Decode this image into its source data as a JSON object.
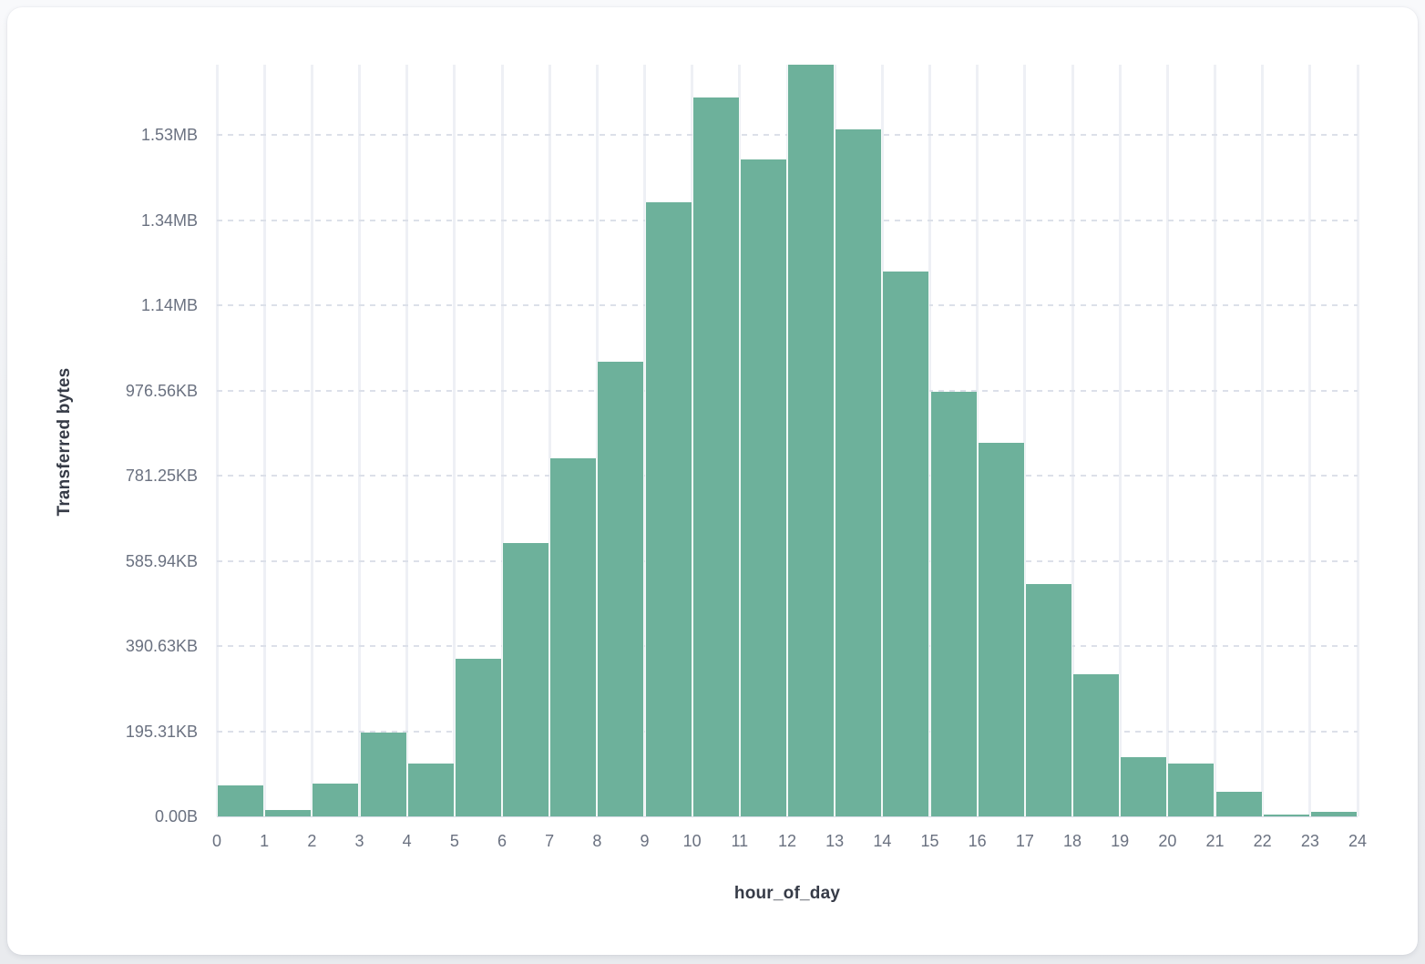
{
  "chart": {
    "y_axis_title": "Transferred bytes",
    "x_axis_title": "hour_of_day"
  },
  "chart_data": {
    "type": "bar",
    "title": "",
    "xlabel": "hour_of_day",
    "ylabel": "Transferred bytes",
    "categories": [
      0,
      1,
      2,
      3,
      4,
      5,
      6,
      7,
      8,
      9,
      10,
      11,
      12,
      13,
      14,
      15,
      16,
      17,
      18,
      19,
      20,
      21,
      22,
      23
    ],
    "values_bytes": [
      73400,
      14300,
      77100,
      196200,
      124800,
      369600,
      642600,
      841000,
      1067900,
      1442400,
      1689100,
      1542900,
      1765500,
      1614200,
      1280400,
      997200,
      878000,
      545700,
      333900,
      139700,
      124800,
      57100,
      4300,
      10700
    ],
    "ylim_bytes": [
      0,
      1765500
    ],
    "x_tick_labels": [
      "0",
      "1",
      "2",
      "3",
      "4",
      "5",
      "6",
      "7",
      "8",
      "9",
      "10",
      "11",
      "12",
      "13",
      "14",
      "15",
      "16",
      "17",
      "18",
      "19",
      "20",
      "21",
      "22",
      "23",
      "24"
    ],
    "y_ticks": [
      {
        "label": "0.00B",
        "bytes": 0
      },
      {
        "label": "195.31KB",
        "bytes": 200000
      },
      {
        "label": "390.63KB",
        "bytes": 400000
      },
      {
        "label": "585.94KB",
        "bytes": 600000
      },
      {
        "label": "781.25KB",
        "bytes": 800000
      },
      {
        "label": "976.56KB",
        "bytes": 1000000
      },
      {
        "label": "1.14MB",
        "bytes": 1200000
      },
      {
        "label": "1.34MB",
        "bytes": 1400000
      },
      {
        "label": "1.53MB",
        "bytes": 1600000
      }
    ],
    "bar_color": "#6db19b",
    "grid": {
      "horizontal": "dashed",
      "vertical": "solid"
    },
    "legend": "none"
  }
}
